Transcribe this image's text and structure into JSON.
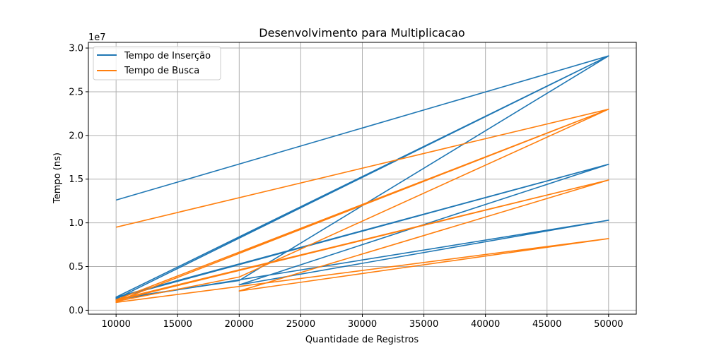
{
  "chart_data": {
    "type": "line",
    "title": "Desenvolvimento para Multiplicacao",
    "xlabel": "Quantidade de Registros",
    "ylabel": "Tempo (ns)",
    "y_offset_text": "1e7",
    "xlim": [
      7750,
      52250
    ],
    "ylim": [
      -0.045,
      3.065
    ],
    "x_ticks": [
      10000,
      15000,
      20000,
      25000,
      30000,
      35000,
      40000,
      45000,
      50000
    ],
    "x_tick_labels": [
      "10000",
      "15000",
      "20000",
      "25000",
      "30000",
      "35000",
      "40000",
      "45000",
      "50000"
    ],
    "y_ticks": [
      0.0,
      0.5,
      1.0,
      1.5,
      2.0,
      2.5,
      3.0
    ],
    "y_tick_labels": [
      "0.0",
      "0.5",
      "1.0",
      "1.5",
      "2.0",
      "2.5",
      "3.0"
    ],
    "grid": true,
    "legend_position": "top-left",
    "series": [
      {
        "name": "Tempo de Inserção",
        "color": "#1f77b4",
        "x": [
          10000,
          50000,
          10000,
          20000,
          50000,
          10000,
          50000,
          10000,
          50000,
          20000,
          50000,
          10000,
          50000
        ],
        "y": [
          1.26,
          2.91,
          0.13,
          0.34,
          2.91,
          0.15,
          1.67,
          0.14,
          1.67,
          0.29,
          1.03,
          0.12,
          1.03
        ]
      },
      {
        "name": "Tempo de Busca",
        "color": "#ff7f0e",
        "x": [
          10000,
          50000,
          10000,
          20000,
          50000,
          10000,
          50000,
          10000,
          50000,
          20000,
          50000,
          10000,
          50000
        ],
        "y": [
          0.95,
          2.3,
          0.1,
          0.38,
          2.3,
          0.12,
          1.49,
          0.11,
          1.49,
          0.22,
          0.82,
          0.09,
          0.82
        ]
      }
    ]
  }
}
